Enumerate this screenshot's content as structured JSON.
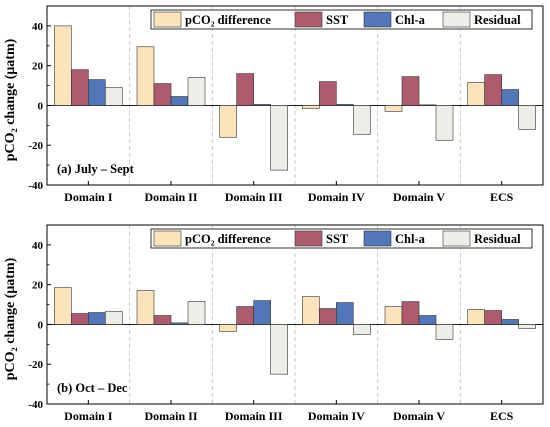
{
  "ylabel": "pCO₂ change (μatm)",
  "legend": [
    {
      "name": "pCO₂ difference",
      "color": "#fbe4bb"
    },
    {
      "name": "SST",
      "color": "#ae5b6f"
    },
    {
      "name": "Chl-a",
      "color": "#5276b8"
    },
    {
      "name": "Residual",
      "color": "#efede7"
    }
  ],
  "chart_data": [
    {
      "type": "bar",
      "panel_label": "(a) July – Sept",
      "categories": [
        "Domain I",
        "Domain II",
        "Domain III",
        "Domain IV",
        "Domain V",
        "ECS"
      ],
      "ylim": [
        -40,
        50
      ],
      "yticks": [
        -40,
        -20,
        0,
        20,
        40
      ],
      "legend_position": "top-right",
      "series": [
        {
          "name": "pCO₂ difference",
          "values": [
            40,
            29.5,
            -16,
            -1.5,
            -3,
            11.5
          ]
        },
        {
          "name": "SST",
          "values": [
            18,
            11,
            16,
            12,
            14.5,
            15.5
          ]
        },
        {
          "name": "Chl-a",
          "values": [
            13,
            4.5,
            0.5,
            0.5,
            0.3,
            8
          ]
        },
        {
          "name": "Residual",
          "values": [
            9,
            14,
            -32.5,
            -14.5,
            -17.5,
            -12
          ]
        }
      ]
    },
    {
      "type": "bar",
      "panel_label": "(b) Oct – Dec",
      "categories": [
        "Domain I",
        "Domain II",
        "Domain III",
        "Domain IV",
        "Domain V",
        "ECS"
      ],
      "ylim": [
        -40,
        50
      ],
      "yticks": [
        -40,
        -20,
        0,
        20,
        40
      ],
      "legend_position": "top-right",
      "series": [
        {
          "name": "pCO₂ difference",
          "values": [
            18.5,
            17,
            -3.5,
            14,
            9,
            7.5
          ]
        },
        {
          "name": "SST",
          "values": [
            5.5,
            4.5,
            9,
            8,
            11.5,
            7
          ]
        },
        {
          "name": "Chl-a",
          "values": [
            6,
            0.8,
            12,
            11,
            4.5,
            2.5
          ]
        },
        {
          "name": "Residual",
          "values": [
            6.5,
            11.5,
            -25,
            -5,
            -7.5,
            -2
          ]
        }
      ]
    }
  ]
}
